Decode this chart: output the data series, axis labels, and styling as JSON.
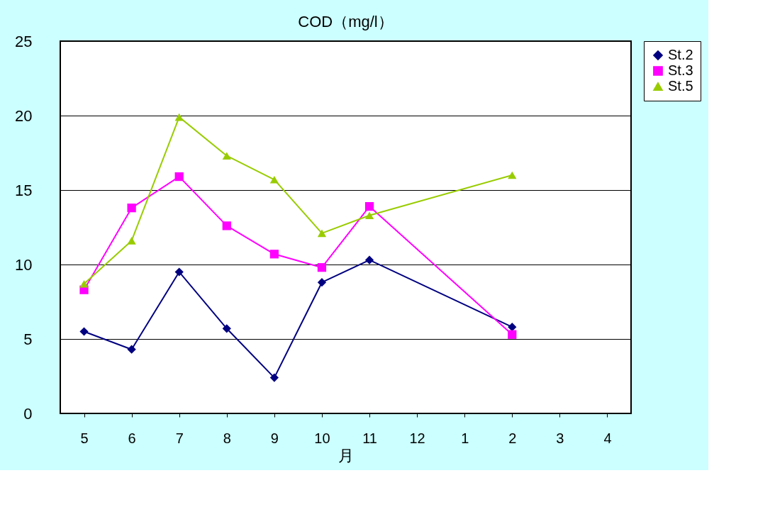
{
  "chart_data": {
    "type": "line",
    "title": "COD（mg/l）",
    "xlabel": "月",
    "categories": [
      "5",
      "6",
      "7",
      "8",
      "9",
      "10",
      "11",
      "12",
      "1",
      "2",
      "3",
      "4"
    ],
    "series": [
      {
        "name": "St.2",
        "color": "#000080",
        "marker": "diamond",
        "values": [
          5.5,
          4.3,
          9.5,
          5.7,
          2.4,
          8.8,
          10.3,
          null,
          null,
          5.8,
          null,
          null
        ]
      },
      {
        "name": "St.3",
        "color": "#ff00ff",
        "marker": "square",
        "values": [
          8.3,
          13.8,
          15.9,
          12.6,
          10.7,
          9.8,
          13.9,
          null,
          null,
          5.3,
          null,
          null
        ]
      },
      {
        "name": "St.5",
        "color": "#99cc00",
        "marker": "triangle",
        "values": [
          8.7,
          11.6,
          19.9,
          17.3,
          15.7,
          12.1,
          13.3,
          null,
          null,
          16.0,
          null,
          null
        ]
      }
    ],
    "ylim": [
      0,
      25
    ],
    "yticks": [
      0,
      5,
      10,
      15,
      20,
      25
    ],
    "grid": "y",
    "legend": "right"
  }
}
